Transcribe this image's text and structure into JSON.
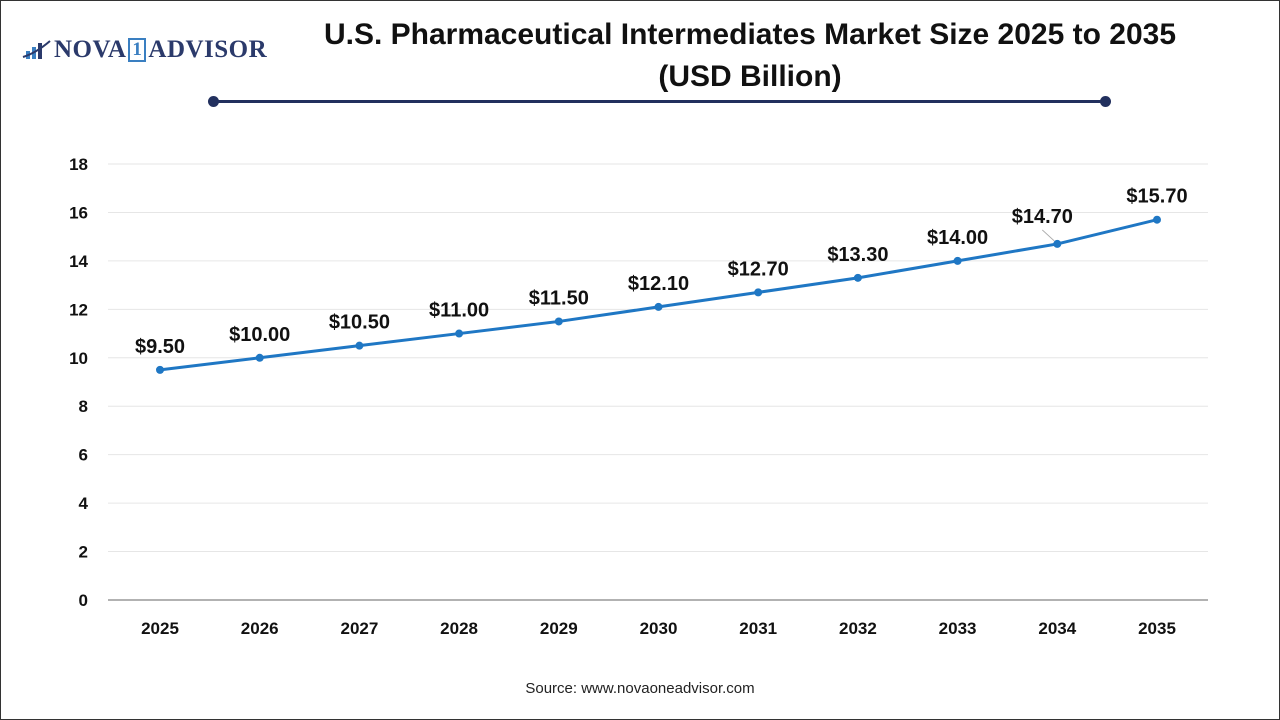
{
  "logo": {
    "text_left": "NOVA",
    "text_mid": "1",
    "text_right": "ADVISOR"
  },
  "title_line1": "U.S. Pharmaceutical Intermediates Market Size 2025 to 2035",
  "title_line2": "(USD Billion)",
  "source": "Source: www.novaoneadvisor.com",
  "colors": {
    "line": "#1f77c4",
    "title_rule": "#22305e",
    "grid": "#e6e6e6"
  },
  "chart_data": {
    "type": "line",
    "title": "U.S. Pharmaceutical Intermediates Market Size 2025 to 2035 (USD Billion)",
    "xlabel": "",
    "ylabel": "",
    "ylim": [
      0,
      18
    ],
    "yticks": [
      0,
      2,
      4,
      6,
      8,
      10,
      12,
      14,
      16,
      18
    ],
    "grid": true,
    "categories": [
      "2025",
      "2026",
      "2027",
      "2028",
      "2029",
      "2030",
      "2031",
      "2032",
      "2033",
      "2034",
      "2035"
    ],
    "values": [
      9.5,
      10.0,
      10.5,
      11.0,
      11.5,
      12.1,
      12.7,
      13.3,
      14.0,
      14.7,
      15.7
    ],
    "data_labels": [
      "$9.50",
      "$10.00",
      "$10.50",
      "$11.00",
      "$11.50",
      "$12.10",
      "$12.70",
      "$13.30",
      "$14.00",
      "$14.70",
      "$15.70"
    ]
  }
}
